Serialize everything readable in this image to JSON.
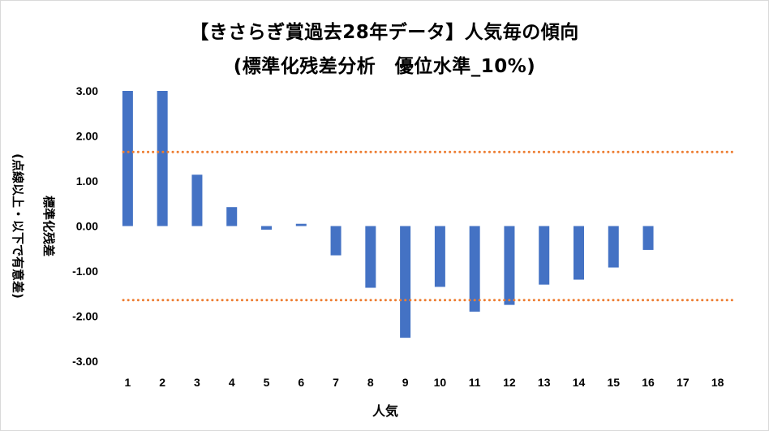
{
  "chart_data": {
    "type": "bar",
    "title": "【きさらぎ賞過去28年データ】人気毎の傾向",
    "subtitle": "(標準化残差分析　優位水準_10%)",
    "xlabel": "人気",
    "ylabel_lines": [
      "標準化残差",
      "(点線以上・以下で有意差)"
    ],
    "categories": [
      "1",
      "2",
      "3",
      "4",
      "5",
      "6",
      "7",
      "8",
      "9",
      "10",
      "11",
      "12",
      "13",
      "14",
      "15",
      "16",
      "17",
      "18"
    ],
    "values": [
      3.0,
      3.0,
      1.14,
      0.42,
      -0.08,
      0.05,
      -0.65,
      -1.37,
      -2.48,
      -1.35,
      -1.9,
      -1.75,
      -1.3,
      -1.19,
      -0.92,
      -0.53,
      null,
      null
    ],
    "ylim": [
      -3.0,
      3.0
    ],
    "yticks": [
      "3.00",
      "2.00",
      "1.00",
      "0.00",
      "-1.00",
      "-2.00",
      "-3.00"
    ],
    "threshold_upper": 1.645,
    "threshold_lower": -1.645,
    "bar_color": "#4472c4",
    "threshold_color": "#ed7d31",
    "grid": false,
    "legend": "none"
  }
}
